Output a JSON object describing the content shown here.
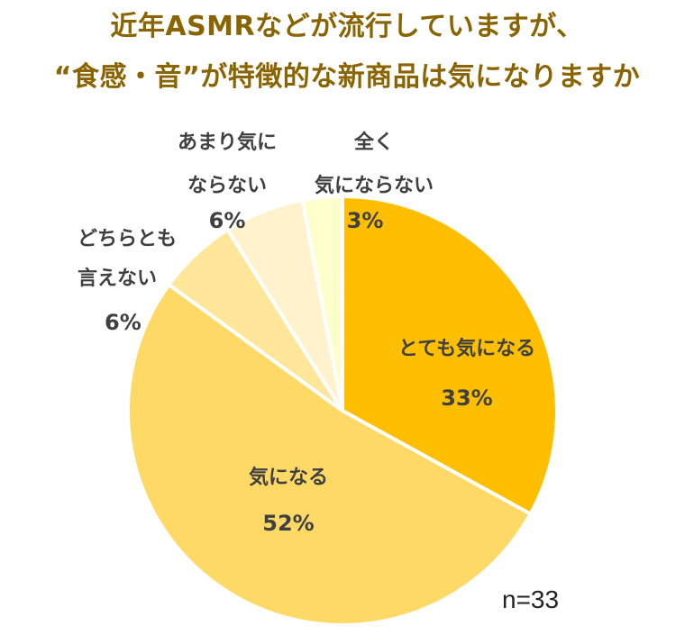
{
  "title": {
    "line1": "近年ASMRなどが流行していますが、",
    "line2": "“食感・音”が特徴的な新商品は気になりますか"
  },
  "sample_size": "n=33",
  "chart_data": {
    "type": "pie",
    "title": "近年ASMRなどが流行していますが、“食感・音”が特徴的な新商品は気になりますか",
    "start": "12 o'clock",
    "direction": "clockwise",
    "slices": [
      {
        "label": "とても気になる",
        "value": 33,
        "pct_label": "33%",
        "color": "#FFBF00"
      },
      {
        "label": "気になる",
        "value": 52,
        "pct_label": "52%",
        "color": "#FFD966"
      },
      {
        "label": "どちらとも言えない",
        "label_lines": [
          "どちらとも",
          "言えない"
        ],
        "value": 6,
        "pct_label": "6%",
        "color": "#FFE699"
      },
      {
        "label": "あまり気にならない",
        "label_lines": [
          "あまり気に",
          "ならない"
        ],
        "value": 6,
        "pct_label": "6%",
        "color": "#FFF2CC"
      },
      {
        "label": "全く気にならない",
        "label_lines": [
          "全く",
          "気にならない"
        ],
        "value": 3,
        "pct_label": "3%",
        "color": "#FFFFCC"
      }
    ]
  }
}
